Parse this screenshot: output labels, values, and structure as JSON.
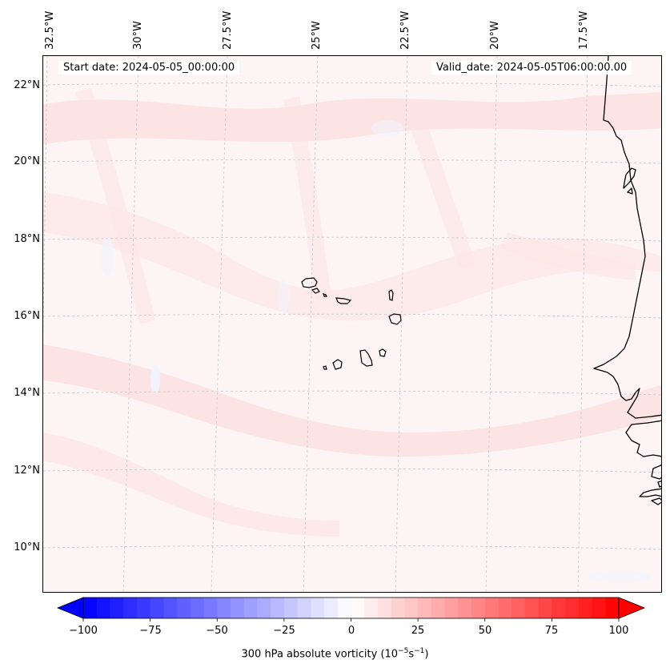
{
  "info": {
    "start_date": "Start date: 2024-05-05_00:00:00",
    "valid_date": "Valid_date: 2024-05-05T06:00:00.00"
  },
  "longitude_labels": [
    "32.5°W",
    "30°W",
    "27.5°W",
    "25°W",
    "22.5°W",
    "20°W",
    "17.5°W"
  ],
  "latitude_labels": [
    "22°N",
    "20°N",
    "18°N",
    "16°N",
    "14°N",
    "12°N",
    "10°N"
  ],
  "colorbar": {
    "label_prefix": "300 hPa absolute vorticity (10",
    "label_exp1": "−5",
    "label_mid": "s",
    "label_exp2": "−1",
    "label_suffix": ")",
    "ticks": [
      "−100",
      "−75",
      "−50",
      "−25",
      "0",
      "25",
      "50",
      "75",
      "100"
    ],
    "min": -100,
    "max": 100,
    "colors": {
      "negative": "#0000ff",
      "zero": "#ffffff",
      "positive": "#ff0000"
    }
  },
  "colors": {
    "background_field": "#fdf5f5",
    "positive_band": "#fde3e3",
    "negative_patch": "#f4f6fd",
    "coastline": "#000000",
    "gridline": "#c8c8c8"
  }
}
